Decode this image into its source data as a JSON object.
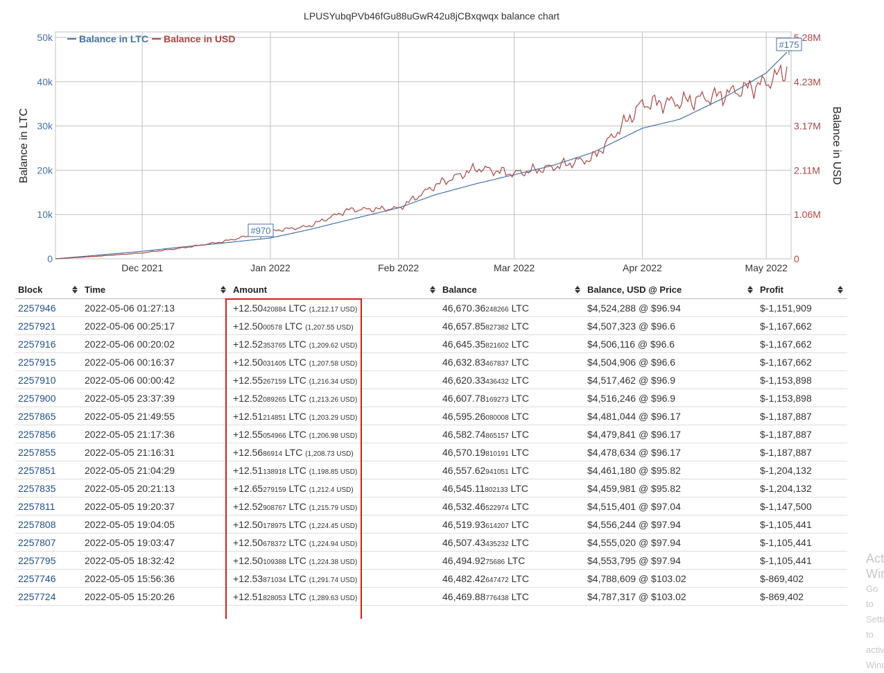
{
  "page": {
    "title": "LPUSYubqPVb46fGu88uGwR42u8jCBxqwqx balance chart"
  },
  "chart": {
    "legend": {
      "ltc": "Balance in LTC",
      "usd": "Balance in USD"
    },
    "y_left_label": "Balance in LTC",
    "y_right_label": "Balance in USD",
    "y_left_ticks": [
      "0",
      "10k",
      "20k",
      "30k",
      "40k",
      "50k"
    ],
    "y_right_ticks": [
      "0",
      "1.06M",
      "2.11M",
      "3.17M",
      "4.23M",
      "5.28M"
    ],
    "x_ticks": [
      "Dec 2021",
      "Jan 2022",
      "Feb 2022",
      "Mar 2022",
      "Apr 2022",
      "May 2022"
    ],
    "flags": [
      "#970",
      "#175"
    ],
    "colors": {
      "ltc": "#4572a7",
      "usd": "#aa4643",
      "grid": "#c0c0c0"
    }
  },
  "chart_data": {
    "type": "line",
    "x": [
      "2021-11-10",
      "2021-11-20",
      "2021-12-01",
      "2021-12-10",
      "2021-12-20",
      "2022-01-01",
      "2022-01-10",
      "2022-01-20",
      "2022-02-01",
      "2022-02-10",
      "2022-02-20",
      "2022-03-01",
      "2022-03-10",
      "2022-03-20",
      "2022-04-01",
      "2022-04-10",
      "2022-04-20",
      "2022-05-01",
      "2022-05-06"
    ],
    "series": [
      {
        "name": "Balance in LTC",
        "axis": "left",
        "values": [
          0,
          800,
          1700,
          2600,
          3500,
          4700,
          6500,
          8800,
          11500,
          14500,
          17000,
          19000,
          21000,
          24000,
          29500,
          31500,
          36000,
          42000,
          46670
        ]
      },
      {
        "name": "Balance in USD",
        "axis": "right",
        "values": [
          0,
          60000,
          140000,
          250000,
          400000,
          660000,
          770000,
          1170000,
          1200000,
          1760000,
          2160000,
          2030000,
          2180000,
          2400000,
          3700000,
          3740000,
          3900000,
          4200000,
          4524288
        ]
      }
    ],
    "y_left_range": [
      0,
      50000
    ],
    "y_right_range": [
      0,
      5280000
    ],
    "x_range": [
      "2021-11-10",
      "2022-05-07"
    ],
    "grid": true,
    "legend_placement": "top-left"
  },
  "table": {
    "headers": [
      "Block",
      "Time",
      "Amount",
      "Balance",
      "Balance, USD @ Price",
      "Profit"
    ],
    "rows": [
      {
        "block": "2257946",
        "time": "2022-05-06 01:27:13",
        "amt_main": "+12.50",
        "amt_frac": "420884",
        "amt_unit": "LTC",
        "amt_usd": "(1,212.17 USD)",
        "bal_main": "46,670.36",
        "bal_frac": "248266",
        "bal_unit": "LTC",
        "usd_price": "$4,524,288 @ $96.94",
        "profit": "$-1,151,909"
      },
      {
        "block": "2257921",
        "time": "2022-05-06 00:25:17",
        "amt_main": "+12.50",
        "amt_frac": "00578",
        "amt_unit": "LTC",
        "amt_usd": "(1,207.55 USD)",
        "bal_main": "46,657.85",
        "bal_frac": "827382",
        "bal_unit": "LTC",
        "usd_price": "$4,507,323 @ $96.6",
        "profit": "$-1,167,662"
      },
      {
        "block": "2257916",
        "time": "2022-05-06 00:20:02",
        "amt_main": "+12.52",
        "amt_frac": "353765",
        "amt_unit": "LTC",
        "amt_usd": "(1,209.62 USD)",
        "bal_main": "46,645.35",
        "bal_frac": "821602",
        "bal_unit": "LTC",
        "usd_price": "$4,506,116 @ $96.6",
        "profit": "$-1,167,662"
      },
      {
        "block": "2257915",
        "time": "2022-05-06 00:16:37",
        "amt_main": "+12.50",
        "amt_frac": "031405",
        "amt_unit": "LTC",
        "amt_usd": "(1,207.58 USD)",
        "bal_main": "46,632.83",
        "bal_frac": "467837",
        "bal_unit": "LTC",
        "usd_price": "$4,504,906 @ $96.6",
        "profit": "$-1,167,662"
      },
      {
        "block": "2257910",
        "time": "2022-05-06 00:00:42",
        "amt_main": "+12.55",
        "amt_frac": "267159",
        "amt_unit": "LTC",
        "amt_usd": "(1,216.34 USD)",
        "bal_main": "46,620.33",
        "bal_frac": "436432",
        "bal_unit": "LTC",
        "usd_price": "$4,517,462 @ $96.9",
        "profit": "$-1,153,898"
      },
      {
        "block": "2257900",
        "time": "2022-05-05 23:37:39",
        "amt_main": "+12.52",
        "amt_frac": "089265",
        "amt_unit": "LTC",
        "amt_usd": "(1,213.26 USD)",
        "bal_main": "46,607.78",
        "bal_frac": "169273",
        "bal_unit": "LTC",
        "usd_price": "$4,516,246 @ $96.9",
        "profit": "$-1,153,898"
      },
      {
        "block": "2257865",
        "time": "2022-05-05 21:49:55",
        "amt_main": "+12.51",
        "amt_frac": "214851",
        "amt_unit": "LTC",
        "amt_usd": "(1,203.29 USD)",
        "bal_main": "46,595.26",
        "bal_frac": "080008",
        "bal_unit": "LTC",
        "usd_price": "$4,481,044 @ $96.17",
        "profit": "$-1,187,887"
      },
      {
        "block": "2257856",
        "time": "2022-05-05 21:17:36",
        "amt_main": "+12.55",
        "amt_frac": "054966",
        "amt_unit": "LTC",
        "amt_usd": "(1,206.98 USD)",
        "bal_main": "46,582.74",
        "bal_frac": "865157",
        "bal_unit": "LTC",
        "usd_price": "$4,479,841 @ $96.17",
        "profit": "$-1,187,887"
      },
      {
        "block": "2257855",
        "time": "2022-05-05 21:16:31",
        "amt_main": "+12.56",
        "amt_frac": "86914",
        "amt_unit": "LTC",
        "amt_usd": "(1,208.73 USD)",
        "bal_main": "46,570.19",
        "bal_frac": "810191",
        "bal_unit": "LTC",
        "usd_price": "$4,478,634 @ $96.17",
        "profit": "$-1,187,887"
      },
      {
        "block": "2257851",
        "time": "2022-05-05 21:04:29",
        "amt_main": "+12.51",
        "amt_frac": "138918",
        "amt_unit": "LTC",
        "amt_usd": "(1,198.85 USD)",
        "bal_main": "46,557.62",
        "bal_frac": "941051",
        "bal_unit": "LTC",
        "usd_price": "$4,461,180 @ $95.82",
        "profit": "$-1,204,132"
      },
      {
        "block": "2257835",
        "time": "2022-05-05 20:21:13",
        "amt_main": "+12.65",
        "amt_frac": "279159",
        "amt_unit": "LTC",
        "amt_usd": "(1,212.4 USD)",
        "bal_main": "46,545.11",
        "bal_frac": "802133",
        "bal_unit": "LTC",
        "usd_price": "$4,459,981 @ $95.82",
        "profit": "$-1,204,132"
      },
      {
        "block": "2257811",
        "time": "2022-05-05 19:20:37",
        "amt_main": "+12.52",
        "amt_frac": "908767",
        "amt_unit": "LTC",
        "amt_usd": "(1,215.79 USD)",
        "bal_main": "46,532.46",
        "bal_frac": "522974",
        "bal_unit": "LTC",
        "usd_price": "$4,515,401 @ $97.04",
        "profit": "$-1,147,500"
      },
      {
        "block": "2257808",
        "time": "2022-05-05 19:04:05",
        "amt_main": "+12.50",
        "amt_frac": "178975",
        "amt_unit": "LTC",
        "amt_usd": "(1,224.45 USD)",
        "bal_main": "46,519.93",
        "bal_frac": "614207",
        "bal_unit": "LTC",
        "usd_price": "$4,556,244 @ $97.94",
        "profit": "$-1,105,441"
      },
      {
        "block": "2257807",
        "time": "2022-05-05 19:03:47",
        "amt_main": "+12.50",
        "amt_frac": "678372",
        "amt_unit": "LTC",
        "amt_usd": "(1,224.94 USD)",
        "bal_main": "46,507.43",
        "bal_frac": "435232",
        "bal_unit": "LTC",
        "usd_price": "$4,555,020 @ $97.94",
        "profit": "$-1,105,441"
      },
      {
        "block": "2257795",
        "time": "2022-05-05 18:32:42",
        "amt_main": "+12.50",
        "amt_frac": "109388",
        "amt_unit": "LTC",
        "amt_usd": "(1,224.38 USD)",
        "bal_main": "46,494.92",
        "bal_frac": "75686",
        "bal_unit": "LTC",
        "usd_price": "$4,553,795 @ $97.94",
        "profit": "$-1,105,441"
      },
      {
        "block": "2257746",
        "time": "2022-05-05 15:56:36",
        "amt_main": "+12.53",
        "amt_frac": "871034",
        "amt_unit": "LTC",
        "amt_usd": "(1,291.74 USD)",
        "bal_main": "46,482.42",
        "bal_frac": "647472",
        "bal_unit": "LTC",
        "usd_price": "$4,788,609 @ $103.02",
        "profit": "$-869,402"
      },
      {
        "block": "2257724",
        "time": "2022-05-05 15:20:26",
        "amt_main": "+12.51",
        "amt_frac": "828053",
        "amt_unit": "LTC",
        "amt_usd": "(1,289.63 USD)",
        "bal_main": "46,469.88",
        "bal_frac": "776438",
        "bal_unit": "LTC",
        "usd_price": "$4,787,317 @ $103.02",
        "profit": "$-869,402"
      }
    ]
  },
  "watermark": {
    "line1": "Activate Windows",
    "line2": "Go to Settings to activate Windows."
  }
}
